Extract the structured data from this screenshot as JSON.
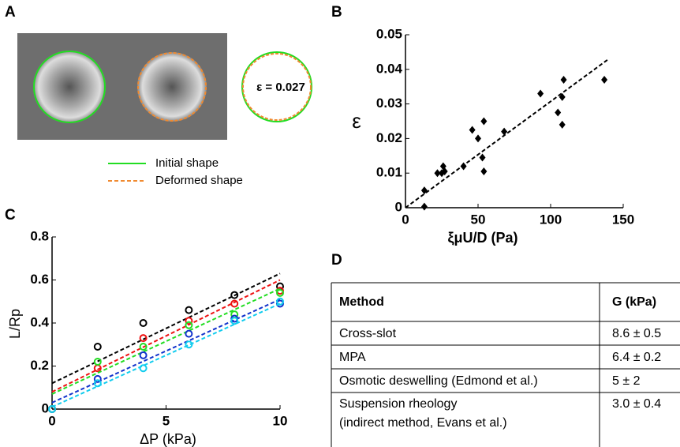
{
  "panel_labels": [
    "A",
    "B",
    "C",
    "D"
  ],
  "panel_a": {
    "epsilon_text": "ε = 0.027",
    "legend": [
      {
        "label": "Initial shape",
        "color": "#22dd22",
        "dashed": false
      },
      {
        "label": "Deformed shape",
        "color": "#f08a30",
        "dashed": true
      }
    ]
  },
  "chart_data": [
    {
      "type": "scatter",
      "xlabel": "ξμU/D (Pa)",
      "ylabel": "ε",
      "x": [
        13,
        13,
        22,
        25,
        26,
        27,
        40,
        46,
        50,
        53,
        54,
        54,
        68,
        93,
        105,
        108,
        108,
        109,
        137
      ],
      "values": [
        0.005,
        0.0003,
        0.01,
        0.01,
        0.012,
        0.0105,
        0.012,
        0.0225,
        0.02,
        0.0145,
        0.025,
        0.0105,
        0.022,
        0.033,
        0.0275,
        0.024,
        0.032,
        0.037,
        0.037
      ],
      "color": "#000000",
      "fit": {
        "x": [
          0,
          140
        ],
        "values": [
          0,
          0.043
        ]
      },
      "xlim": [
        0,
        150
      ],
      "xticks": [
        0,
        50,
        100,
        150
      ],
      "ylim": [
        0,
        0.05
      ],
      "yticks": [
        0,
        0.01,
        0.02,
        0.03,
        0.04,
        0.05
      ]
    },
    {
      "type": "scatter",
      "xlabel": "ΔP (kPa)",
      "ylabel": "L/Rp",
      "x": [
        0,
        2,
        4,
        6,
        8,
        10
      ],
      "fit_x": [
        0,
        10
      ],
      "series": [
        {
          "color": "#000000",
          "values": [
            0,
            0.29,
            0.4,
            0.46,
            0.53,
            0.57
          ],
          "fit_values": [
            0.12,
            0.63
          ]
        },
        {
          "color": "#ee1111",
          "values": [
            0,
            0.19,
            0.33,
            0.41,
            0.49,
            0.55
          ],
          "fit_values": [
            0.08,
            0.6
          ]
        },
        {
          "color": "#22dd22",
          "values": [
            0,
            0.22,
            0.29,
            0.39,
            0.44,
            0.54
          ],
          "fit_values": [
            0.07,
            0.56
          ]
        },
        {
          "color": "#1133cc",
          "values": [
            0,
            0.14,
            0.25,
            0.35,
            0.42,
            0.49
          ],
          "fit_values": [
            0.03,
            0.51
          ]
        },
        {
          "color": "#11ccee",
          "values": [
            0,
            0.12,
            0.19,
            0.3,
            0.41,
            0.5
          ],
          "fit_values": [
            0.01,
            0.49
          ]
        }
      ],
      "xlim": [
        0,
        10
      ],
      "xticks": [
        0,
        5,
        10
      ],
      "ylim": [
        0,
        0.8
      ],
      "yticks": [
        0,
        0.2,
        0.4,
        0.6,
        0.8
      ]
    }
  ],
  "table": {
    "header": [
      "Method",
      "G (kPa)"
    ],
    "rows": [
      [
        "Cross-slot",
        "8.6 ± 0.5"
      ],
      [
        "MPA",
        "6.4 ± 0.2"
      ],
      [
        "Osmotic deswelling (Edmond et al.)",
        "5 ± 2"
      ],
      [
        [
          "Suspension rheology",
          "(indirect method, Evans et al.)"
        ],
        "3.0 ± 0.4"
      ]
    ]
  }
}
